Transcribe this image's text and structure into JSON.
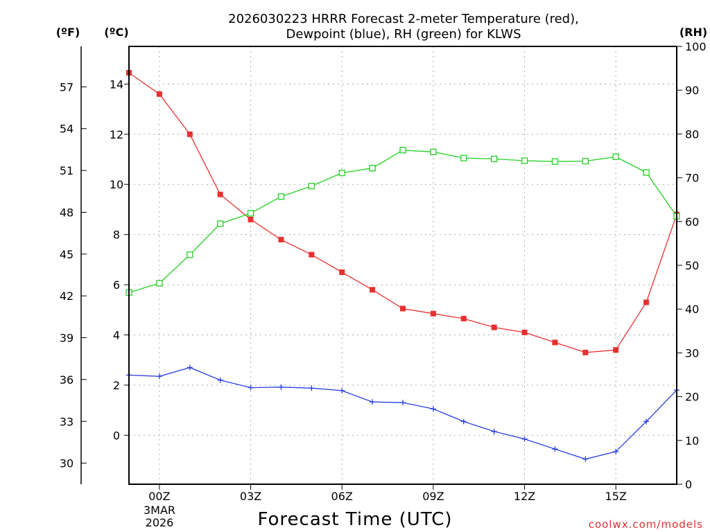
{
  "colors": {
    "temp": "#e83030",
    "dew": "#2a3ee0",
    "rh": "#22d022",
    "grid": "#aaaaaa"
  },
  "chart_data": {
    "type": "line",
    "title": [
      "2026030223 HRRR Forecast 2-meter Temperature (red),",
      "Dewpoint (blue), RH (green) for KLWS"
    ],
    "xlabel": "Forecast Time (UTC)",
    "date_label": [
      "3MAR",
      "2026"
    ],
    "credit": "coolwx.com/models",
    "units": {
      "f": "(ºF)",
      "c": "(ºC)",
      "rh": "(RH)"
    },
    "x": [
      -1,
      0,
      1,
      2,
      3,
      4,
      5,
      6,
      7,
      8,
      9,
      10,
      11,
      12,
      13,
      14,
      15,
      16,
      17
    ],
    "xlim": [
      -1,
      17
    ],
    "x_ticks": [
      {
        "v": 0,
        "label": "00Z"
      },
      {
        "v": 3,
        "label": "03Z"
      },
      {
        "v": 6,
        "label": "06Z"
      },
      {
        "v": 9,
        "label": "09Z"
      },
      {
        "v": 12,
        "label": "12Z"
      },
      {
        "v": 15,
        "label": "15Z"
      }
    ],
    "ylim_c": [
      -1.95,
      15.5
    ],
    "c_ticks": [
      "0",
      "2",
      "4",
      "6",
      "8",
      "10",
      "12",
      "14"
    ],
    "f_ticks": [
      "30",
      "33",
      "36",
      "39",
      "42",
      "45",
      "48",
      "51",
      "54",
      "57"
    ],
    "ylim_rh": [
      0,
      100
    ],
    "rh_ticks": [
      "0",
      "10",
      "20",
      "30",
      "40",
      "50",
      "60",
      "70",
      "80",
      "90",
      "100"
    ],
    "series": [
      {
        "name": "Temperature",
        "axis": "c",
        "marker": "filled-square",
        "values": [
          14.45,
          13.6,
          12.0,
          9.6,
          8.6,
          7.8,
          7.2,
          6.5,
          5.8,
          5.05,
          4.85,
          4.65,
          4.3,
          4.1,
          3.7,
          3.3,
          3.4,
          5.3,
          8.8
        ]
      },
      {
        "name": "Dewpoint",
        "axis": "c",
        "marker": "plus",
        "values": [
          2.4,
          2.35,
          2.7,
          2.2,
          1.9,
          1.92,
          1.88,
          1.78,
          1.33,
          1.3,
          1.05,
          0.55,
          0.15,
          -0.15,
          -0.55,
          -0.95,
          -0.65,
          0.55,
          1.8
        ]
      },
      {
        "name": "RH",
        "axis": "rh",
        "marker": "open-square",
        "values": [
          43.8,
          45.9,
          52.4,
          59.5,
          61.9,
          65.7,
          68.1,
          71.1,
          72.2,
          76.3,
          75.9,
          74.5,
          74.3,
          73.9,
          73.7,
          73.8,
          74.8,
          71.2,
          61.2
        ]
      }
    ]
  }
}
